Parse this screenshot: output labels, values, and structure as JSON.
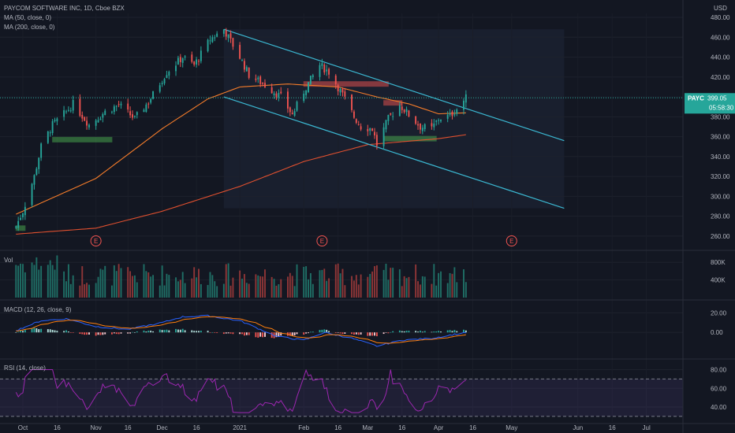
{
  "header": {
    "title": "PAYCOM SOFTWARE INC, 1D, Cboe BZX",
    "ma50": "MA (50, close, 0)",
    "ma200": "MA (200, close, 0)",
    "currency": "USD"
  },
  "price_tag": {
    "symbol": "PAYC",
    "price": "399.05",
    "countdown": "05:58:30"
  },
  "earnings_marker": "E",
  "colors": {
    "background": "#131722",
    "up": "#26a69a",
    "down": "#ef5350",
    "ma50": "#f57c2a",
    "ma200": "#e0502f",
    "channel": "#3bb7d1",
    "macd": "#2962ff",
    "signal": "#ff7f0e",
    "rsi": "#9c27b0"
  },
  "chart_data": [
    {
      "type": "candlestick",
      "title": "PAYCOM SOFTWARE INC, 1D, Cboe BZX",
      "y_ticks": [
        "480.00",
        "460.00",
        "440.00",
        "420.00",
        "400.00",
        "380.00",
        "360.00",
        "340.00",
        "320.00",
        "300.00",
        "280.00",
        "260.00"
      ],
      "ylim": [
        252,
        484
      ],
      "current_price": 399.05,
      "x_ticks": [
        "Oct",
        "16",
        "Nov",
        "16",
        "Dec",
        "16",
        "2021",
        "Feb",
        "16",
        "Mar",
        "16",
        "Apr",
        "16",
        "May",
        "Jun",
        "16",
        "Jul"
      ],
      "x_tick_dates": [
        "2020-10-01",
        "2020-10-16",
        "2020-11-02",
        "2020-11-16",
        "2020-12-01",
        "2020-12-16",
        "2021-01-04",
        "2021-02-01",
        "2021-02-16",
        "2021-03-01",
        "2021-03-16",
        "2021-04-01",
        "2021-04-16",
        "2021-05-03",
        "2021-06-01",
        "2021-06-16",
        "2021-07-01"
      ],
      "close_anchors": [
        {
          "date": "2020-09-28",
          "close": 270
        },
        {
          "date": "2020-10-01",
          "close": 285
        },
        {
          "date": "2020-10-06",
          "close": 320
        },
        {
          "date": "2020-10-09",
          "close": 350
        },
        {
          "date": "2020-10-14",
          "close": 372
        },
        {
          "date": "2020-10-20",
          "close": 385
        },
        {
          "date": "2020-10-23",
          "close": 393
        },
        {
          "date": "2020-10-30",
          "close": 372
        },
        {
          "date": "2020-11-06",
          "close": 385
        },
        {
          "date": "2020-11-12",
          "close": 392
        },
        {
          "date": "2020-11-19",
          "close": 378
        },
        {
          "date": "2020-11-25",
          "close": 395
        },
        {
          "date": "2020-12-03",
          "close": 425
        },
        {
          "date": "2020-12-10",
          "close": 440
        },
        {
          "date": "2020-12-15",
          "close": 432
        },
        {
          "date": "2020-12-22",
          "close": 458
        },
        {
          "date": "2020-12-28",
          "close": 468
        },
        {
          "date": "2021-01-04",
          "close": 440
        },
        {
          "date": "2021-01-08",
          "close": 422
        },
        {
          "date": "2021-01-15",
          "close": 412
        },
        {
          "date": "2021-01-22",
          "close": 400
        },
        {
          "date": "2021-01-27",
          "close": 382
        },
        {
          "date": "2021-02-02",
          "close": 410
        },
        {
          "date": "2021-02-08",
          "close": 432
        },
        {
          "date": "2021-02-12",
          "close": 425
        },
        {
          "date": "2021-02-18",
          "close": 402
        },
        {
          "date": "2021-02-23",
          "close": 380
        },
        {
          "date": "2021-02-26",
          "close": 370
        },
        {
          "date": "2021-03-03",
          "close": 368
        },
        {
          "date": "2021-03-05",
          "close": 352
        },
        {
          "date": "2021-03-10",
          "close": 378
        },
        {
          "date": "2021-03-15",
          "close": 392
        },
        {
          "date": "2021-03-19",
          "close": 382
        },
        {
          "date": "2021-03-24",
          "close": 370
        },
        {
          "date": "2021-03-29",
          "close": 368
        },
        {
          "date": "2021-04-01",
          "close": 378
        },
        {
          "date": "2021-04-06",
          "close": 381
        },
        {
          "date": "2021-04-09",
          "close": 388
        },
        {
          "date": "2021-04-13",
          "close": 399.05
        }
      ],
      "moving_averages": [
        {
          "name": "MA (50, close, 0)",
          "points": [
            {
              "date": "2020-09-28",
              "value": 282
            },
            {
              "date": "2020-11-02",
              "value": 318
            },
            {
              "date": "2020-12-01",
              "value": 368
            },
            {
              "date": "2020-12-21",
              "value": 398
            },
            {
              "date": "2021-01-04",
              "value": 410
            },
            {
              "date": "2021-01-25",
              "value": 413
            },
            {
              "date": "2021-02-16",
              "value": 410
            },
            {
              "date": "2021-03-05",
              "value": 400
            },
            {
              "date": "2021-03-19",
              "value": 393
            },
            {
              "date": "2021-04-01",
              "value": 383
            },
            {
              "date": "2021-04-13",
              "value": 384
            }
          ]
        },
        {
          "name": "MA (200, close, 0)",
          "points": [
            {
              "date": "2020-09-28",
              "value": 262
            },
            {
              "date": "2020-11-02",
              "value": 268
            },
            {
              "date": "2020-12-01",
              "value": 285
            },
            {
              "date": "2021-01-04",
              "value": 310
            },
            {
              "date": "2021-02-01",
              "value": 335
            },
            {
              "date": "2021-03-01",
              "value": 352
            },
            {
              "date": "2021-04-01",
              "value": 358
            },
            {
              "date": "2021-04-13",
              "value": 362
            }
          ]
        }
      ],
      "channel_lines": [
        {
          "from": {
            "date": "2020-12-28",
            "value": 468
          },
          "to": {
            "date": "2021-05-26",
            "value": 356
          }
        },
        {
          "from": {
            "date": "2020-12-28",
            "value": 400
          },
          "to": {
            "date": "2021-05-26",
            "value": 288
          }
        }
      ],
      "channel_fill": {
        "from": "2020-12-28",
        "to": "2021-05-26",
        "top": 468,
        "bottom": 288
      },
      "zones": [
        {
          "from": "2020-09-28",
          "to": "2020-10-02",
          "value": 268,
          "color": "#4caf50"
        },
        {
          "from": "2020-10-14",
          "to": "2020-11-09",
          "value": 357,
          "color": "#4caf50"
        },
        {
          "from": "2021-02-01",
          "to": "2021-03-10",
          "value": 413,
          "color": "#ef5350"
        },
        {
          "from": "2021-03-08",
          "to": "2021-03-16",
          "value": 394,
          "color": "#ef5350"
        },
        {
          "from": "2021-03-08",
          "to": "2021-03-31",
          "value": 358,
          "color": "#4caf50"
        }
      ],
      "earnings_dates": [
        "2020-11-02",
        "2021-02-09",
        "2021-05-03"
      ]
    },
    {
      "type": "bar",
      "title": "Vol",
      "y_ticks": [
        "800K",
        "400K"
      ],
      "ylim": [
        0,
        1000000
      ]
    },
    {
      "type": "histogram",
      "title": "MACD (12, 26, close, 9)",
      "y_ticks": [
        "20.00",
        "0.00"
      ],
      "ylim": [
        -24,
        30
      ],
      "macd_anchors": [
        {
          "date": "2020-09-28",
          "value": 2
        },
        {
          "date": "2020-10-09",
          "value": 12
        },
        {
          "date": "2020-10-20",
          "value": 14
        },
        {
          "date": "2020-11-02",
          "value": 6
        },
        {
          "date": "2020-11-16",
          "value": 3
        },
        {
          "date": "2020-12-01",
          "value": 10
        },
        {
          "date": "2020-12-10",
          "value": 16
        },
        {
          "date": "2020-12-21",
          "value": 17
        },
        {
          "date": "2021-01-04",
          "value": 12
        },
        {
          "date": "2021-01-20",
          "value": -4
        },
        {
          "date": "2021-02-01",
          "value": -8
        },
        {
          "date": "2021-02-10",
          "value": 0
        },
        {
          "date": "2021-02-22",
          "value": -6
        },
        {
          "date": "2021-03-05",
          "value": -14
        },
        {
          "date": "2021-03-16",
          "value": -8
        },
        {
          "date": "2021-03-29",
          "value": -6
        },
        {
          "date": "2021-04-13",
          "value": 0
        }
      ]
    },
    {
      "type": "line",
      "title": "RSI (14, close)",
      "y_ticks": [
        "80.00",
        "60.00",
        "40.00"
      ],
      "ylim": [
        24,
        88
      ],
      "bands": [
        70,
        30
      ]
    }
  ]
}
